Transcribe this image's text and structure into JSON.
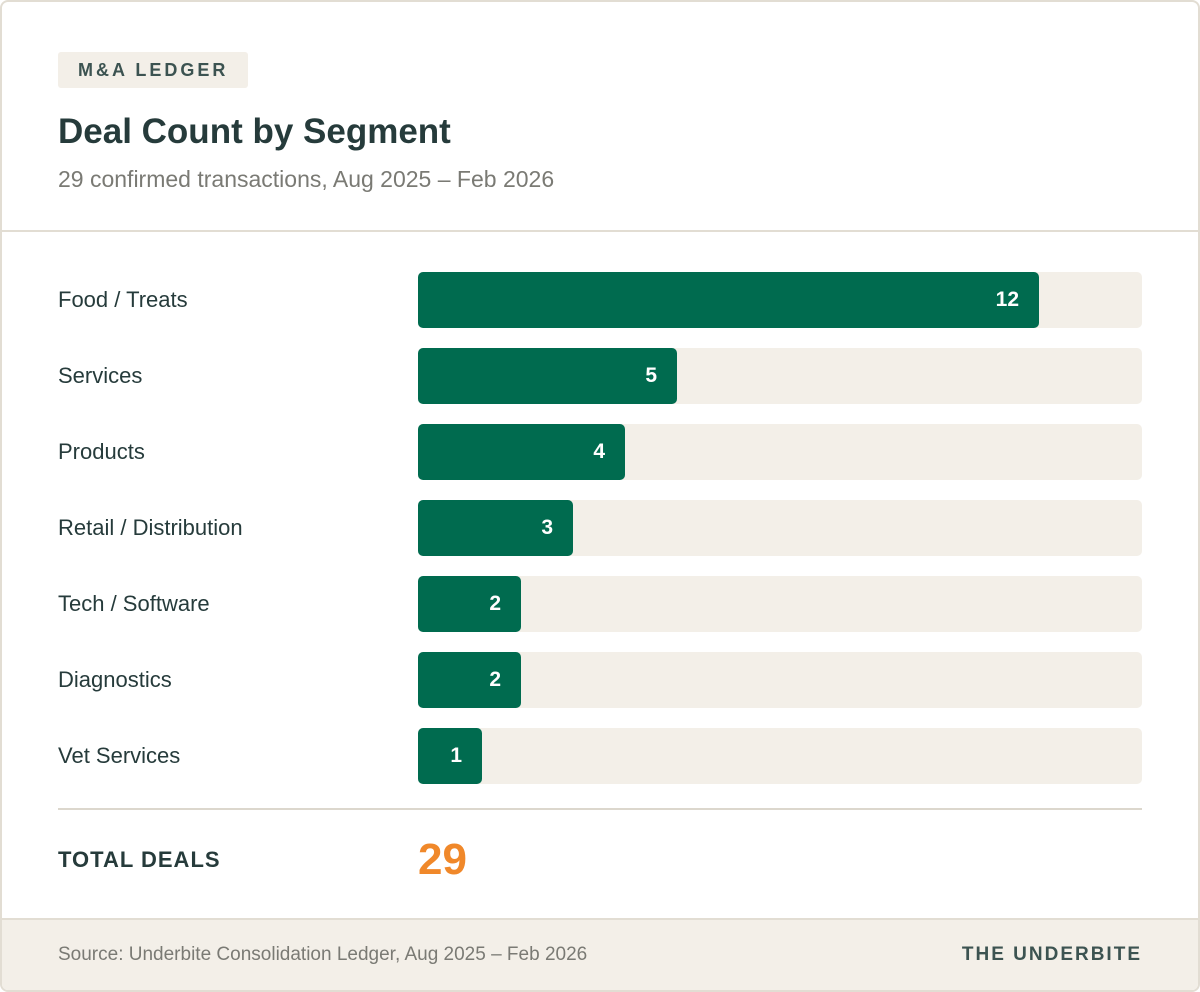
{
  "header": {
    "tag": "M&A LEDGER",
    "title": "Deal Count by Segment",
    "subtitle": "29 confirmed transactions, Aug 2025 – Feb 2026"
  },
  "colors": {
    "bar": "#006b4f",
    "track": "#f3efe8",
    "total_accent": "#f0882a"
  },
  "chart_data": {
    "type": "bar",
    "orientation": "horizontal",
    "title": "Deal Count by Segment",
    "subtitle": "29 confirmed transactions, Aug 2025 – Feb 2026",
    "xlabel": "",
    "ylabel": "",
    "xlim": [
      0,
      14
    ],
    "categories": [
      "Food / Treats",
      "Services",
      "Products",
      "Retail / Distribution",
      "Tech / Software",
      "Diagnostics",
      "Vet Services"
    ],
    "values": [
      12,
      5,
      4,
      3,
      2,
      2,
      1
    ]
  },
  "total": {
    "label": "TOTAL DEALS",
    "value": "29"
  },
  "footer": {
    "source": "Source: Underbite Consolidation Ledger, Aug 2025 – Feb 2026",
    "brand": "THE UNDERBITE"
  }
}
